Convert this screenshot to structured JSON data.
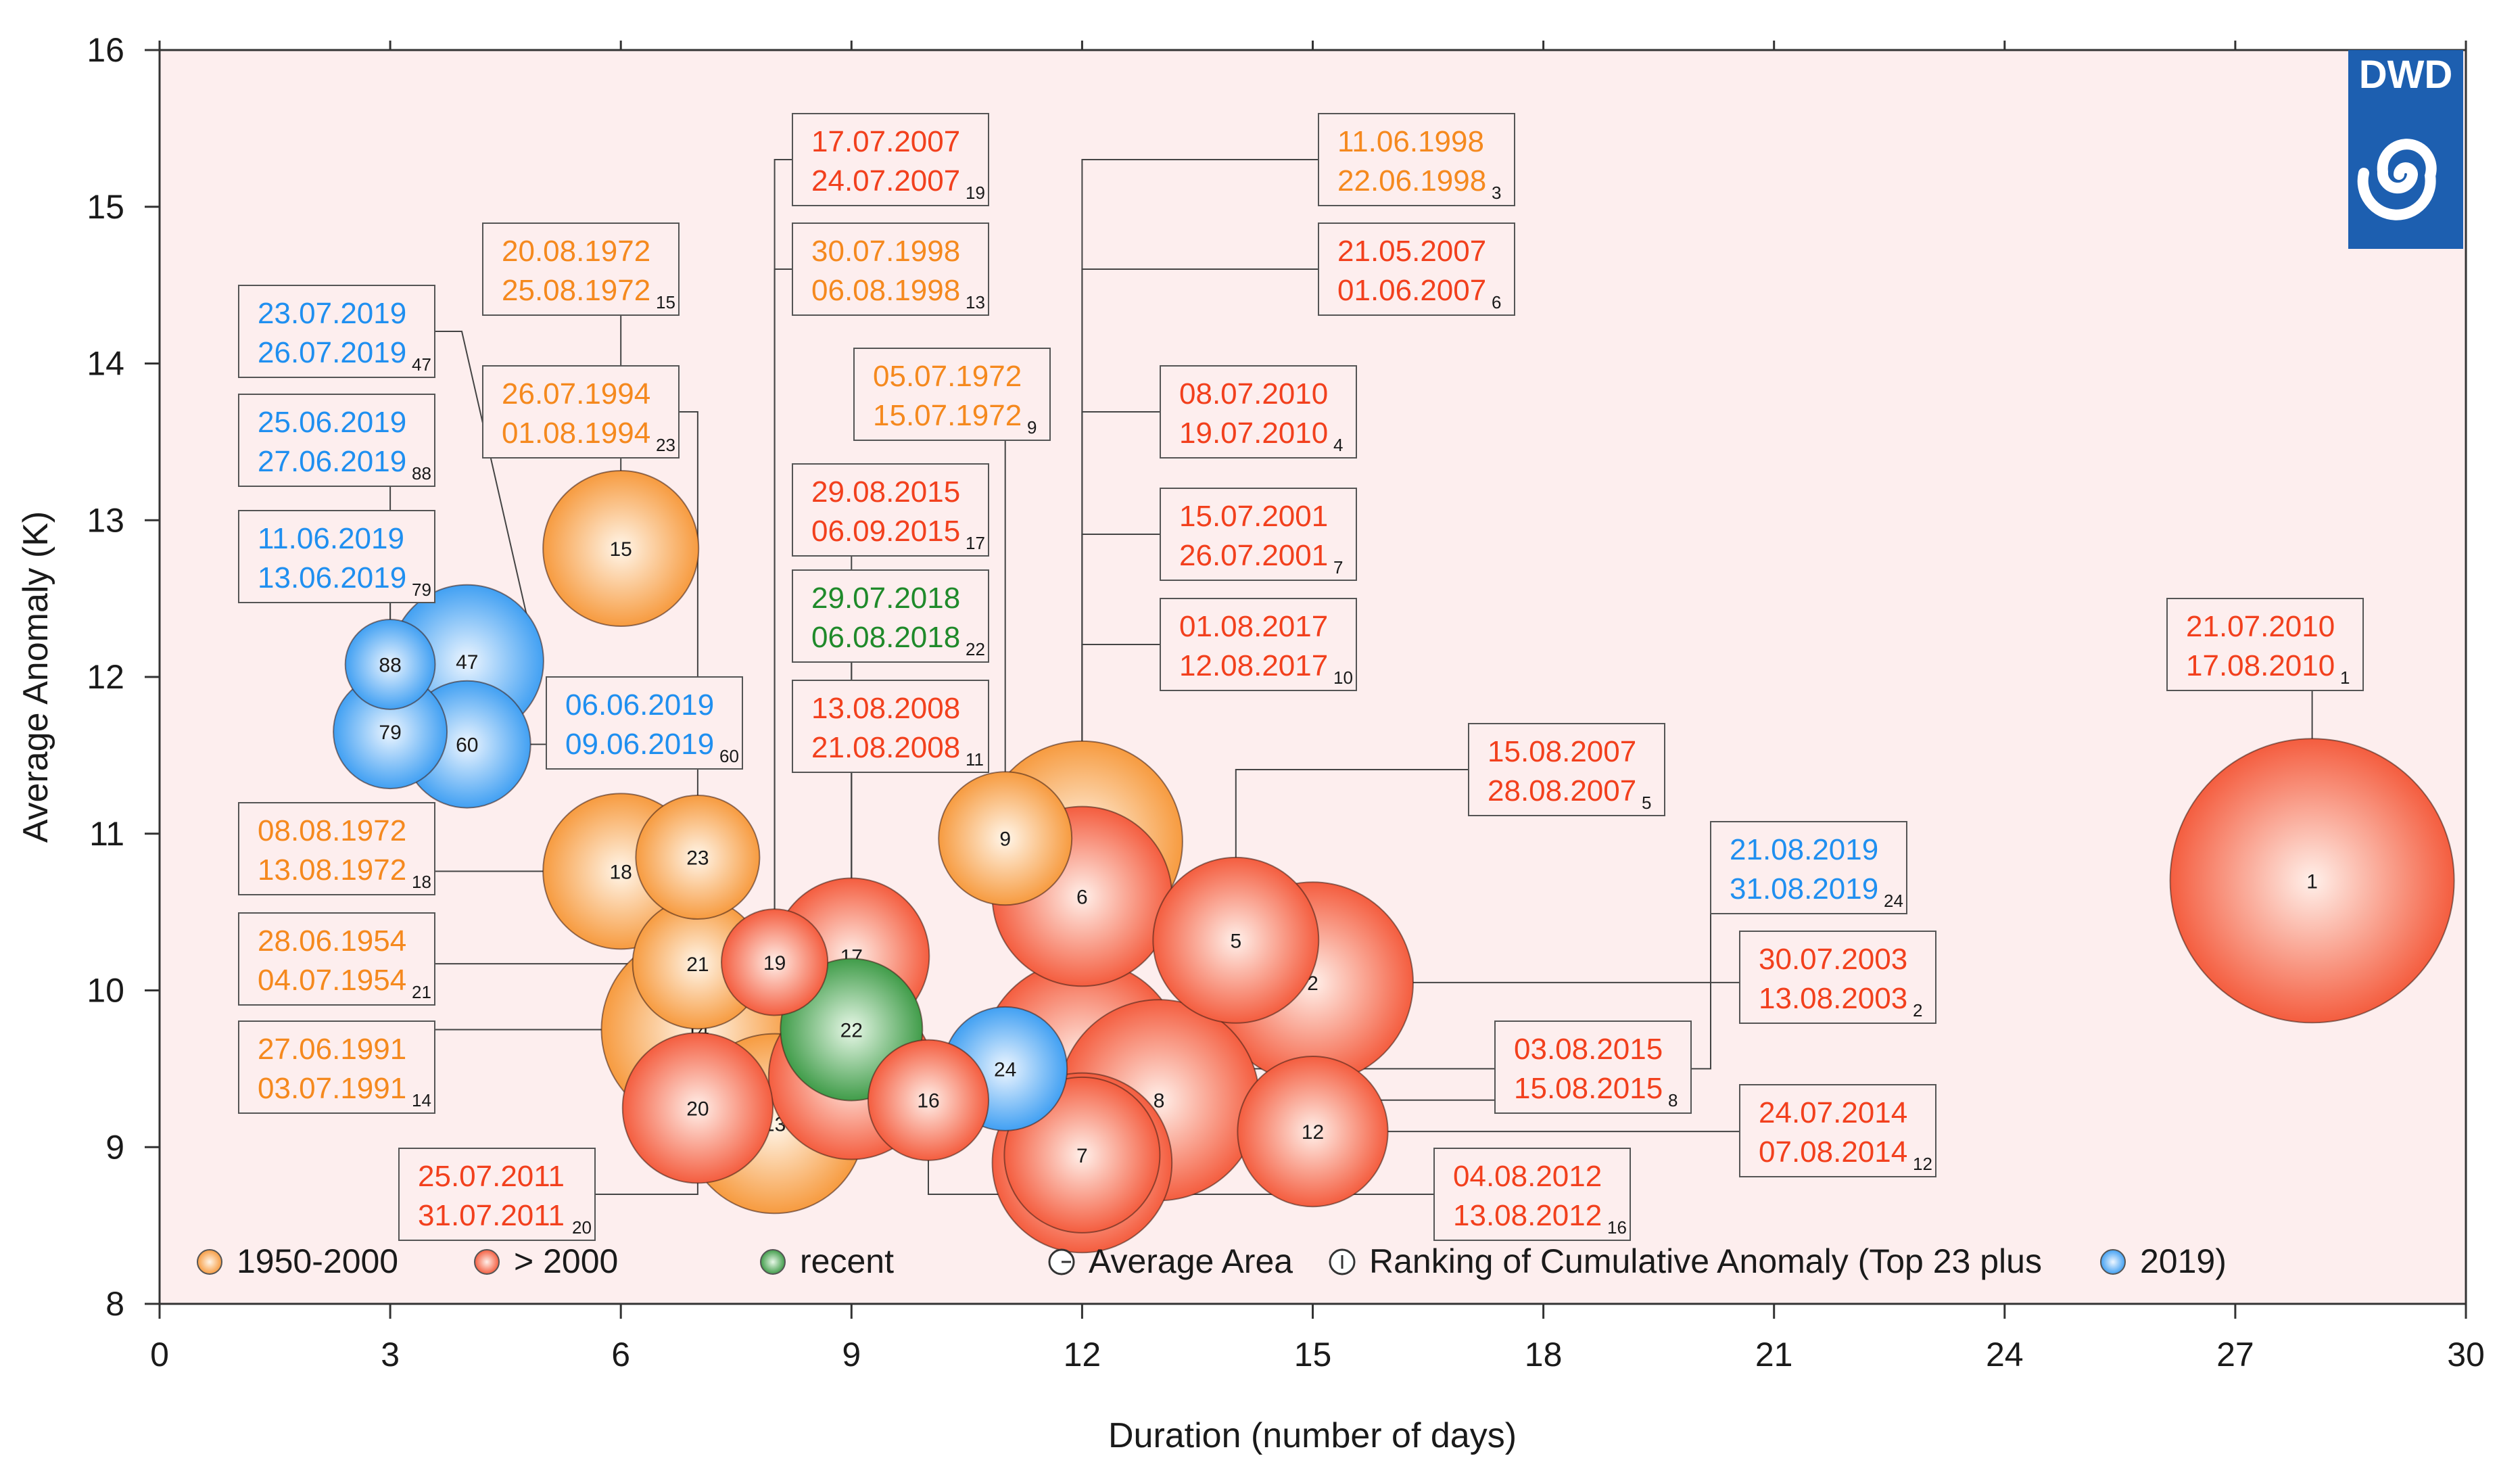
{
  "colors": {
    "c1950": "#f5891e",
    "c2000": "#f2401d",
    "recent": "#1f8a2a",
    "y2019": "#1f8ff0",
    "plot_bg": "#fdeeee",
    "logo_bg": "#1d5fb0"
  },
  "logo": {
    "text": "DWD",
    "icon": "swirl-icon"
  },
  "chart_data": {
    "type": "scatter",
    "xlabel": "Duration (number of days)",
    "ylabel": "Average Anomaly (K)",
    "xlim": [
      0,
      30
    ],
    "ylim": [
      8,
      16
    ],
    "x_ticks": [
      0,
      3,
      6,
      9,
      12,
      15,
      18,
      21,
      24,
      27,
      30
    ],
    "y_ticks": [
      8,
      9,
      10,
      11,
      12,
      13,
      14,
      15,
      16
    ],
    "legend": [
      {
        "label": "1950-2000",
        "marker": "c1950"
      },
      {
        "label": "> 2000",
        "marker": "c2000"
      },
      {
        "label": "recent",
        "marker": "recent"
      },
      {
        "label": "Average Area",
        "marker": "area"
      },
      {
        "label": "Ranking of Cumulative Anomaly (Top 23 plus",
        "marker": "rank"
      },
      {
        "label": "2019)",
        "marker": "y2019"
      }
    ],
    "events": [
      {
        "rank": "1",
        "duration": 28,
        "anomaly": 10.7,
        "area": 10,
        "group": "c2000",
        "start": "21.07.2010",
        "end": "17.08.2010"
      },
      {
        "rank": "2",
        "duration": 15,
        "anomaly": 10.05,
        "area": 5,
        "group": "c2000",
        "start": "30.07.2003",
        "end": "13.08.2003"
      },
      {
        "rank": "3",
        "duration": 12,
        "anomaly": 10.95,
        "area": 5,
        "group": "c1950",
        "start": "11.06.1998",
        "end": "22.06.1998"
      },
      {
        "rank": "4",
        "duration": 12,
        "anomaly": 9.55,
        "area": 5,
        "group": "c2000",
        "start": "08.07.2010",
        "end": "19.07.2010"
      },
      {
        "rank": "5",
        "duration": 14,
        "anomaly": 10.32,
        "area": 3.4,
        "group": "c2000",
        "start": "15.08.2007",
        "end": "28.08.2007"
      },
      {
        "rank": "6",
        "duration": 12,
        "anomaly": 10.6,
        "area": 4,
        "group": "c2000",
        "start": "21.05.2007",
        "end": "01.06.2007"
      },
      {
        "rank": "7",
        "duration": 12,
        "anomaly": 8.95,
        "area": 3,
        "group": "c2000",
        "start": "15.07.2001",
        "end": "26.07.2001"
      },
      {
        "rank": "8",
        "duration": 13,
        "anomaly": 9.3,
        "area": 5,
        "group": "c2000",
        "start": "03.08.2015",
        "end": "15.08.2015"
      },
      {
        "rank": "9",
        "duration": 11,
        "anomaly": 10.97,
        "area": 2.2,
        "group": "c1950",
        "start": "05.07.1972",
        "end": "15.07.1972"
      },
      {
        "rank": "10",
        "duration": 12,
        "anomaly": 8.9,
        "area": 4,
        "group": "c2000",
        "start": "01.08.2017",
        "end": "12.08.2017"
      },
      {
        "rank": "11",
        "duration": 9,
        "anomaly": 9.45,
        "area": 3.4,
        "group": "c2000",
        "start": "13.08.2008",
        "end": "21.08.2008"
      },
      {
        "rank": "12",
        "duration": 15,
        "anomaly": 9.1,
        "area": 2.8,
        "group": "c2000",
        "start": "24.07.2014",
        "end": "07.08.2014"
      },
      {
        "rank": "13",
        "duration": 8,
        "anomaly": 9.15,
        "area": 4,
        "group": "c1950",
        "start": "30.07.1998",
        "end": "06.08.1998"
      },
      {
        "rank": "14",
        "duration": 7,
        "anomaly": 9.75,
        "area": 4.6,
        "group": "c1950",
        "start": "27.06.1991",
        "end": "03.07.1991"
      },
      {
        "rank": "15",
        "duration": 6,
        "anomaly": 12.82,
        "area": 3,
        "group": "c1950",
        "start": "20.08.1972",
        "end": "25.08.1972"
      },
      {
        "rank": "16",
        "duration": 10,
        "anomaly": 9.3,
        "area": 1.8,
        "group": "c2000",
        "start": "04.08.2012",
        "end": "13.08.2012"
      },
      {
        "rank": "17",
        "duration": 9,
        "anomaly": 10.22,
        "area": 3,
        "group": "c2000",
        "start": "29.08.2015",
        "end": "06.09.2015"
      },
      {
        "rank": "18",
        "duration": 6,
        "anomaly": 10.76,
        "area": 3,
        "group": "c1950",
        "start": "08.08.1972",
        "end": "13.08.1972"
      },
      {
        "rank": "19",
        "duration": 8,
        "anomaly": 10.18,
        "area": 1.4,
        "group": "c2000",
        "start": "17.07.2007",
        "end": "24.07.2007"
      },
      {
        "rank": "20",
        "duration": 7,
        "anomaly": 9.25,
        "area": 2.8,
        "group": "c2000",
        "start": "25.07.2011",
        "end": "31.07.2011"
      },
      {
        "rank": "21",
        "duration": 7,
        "anomaly": 10.17,
        "area": 2.1,
        "group": "c1950",
        "start": "28.06.1954",
        "end": "04.07.1954"
      },
      {
        "rank": "22",
        "duration": 9,
        "anomaly": 9.75,
        "area": 2.5,
        "group": "recent",
        "start": "29.07.2018",
        "end": "06.08.2018"
      },
      {
        "rank": "23",
        "duration": 7,
        "anomaly": 10.85,
        "area": 1.9,
        "group": "c1950",
        "start": "26.07.1994",
        "end": "01.08.1994"
      },
      {
        "rank": "24",
        "duration": 11,
        "anomaly": 9.5,
        "area": 1.9,
        "group": "y2019",
        "start": "21.08.2019",
        "end": "31.08.2019"
      },
      {
        "rank": "47",
        "duration": 4,
        "anomaly": 12.1,
        "area": 2.9,
        "group": "y2019",
        "start": "23.07.2019",
        "end": "26.07.2019"
      },
      {
        "rank": "60",
        "duration": 4,
        "anomaly": 11.57,
        "area": 2,
        "group": "y2019",
        "start": "06.06.2019",
        "end": "09.06.2019"
      },
      {
        "rank": "79",
        "duration": 3,
        "anomaly": 11.65,
        "area": 1.6,
        "group": "y2019",
        "start": "11.06.2019",
        "end": "13.06.2019"
      },
      {
        "rank": "88",
        "duration": 3,
        "anomaly": 12.08,
        "area": 1,
        "group": "y2019",
        "start": "25.06.2019",
        "end": "27.06.2019"
      }
    ]
  }
}
